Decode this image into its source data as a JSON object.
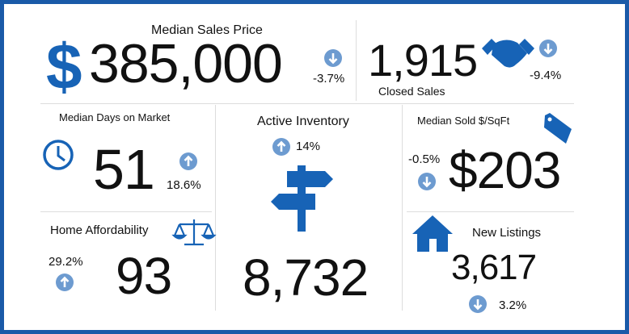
{
  "median_sales_price": {
    "label": "Median Sales Price",
    "symbol": "$",
    "value": "385,000",
    "change": "-3.7%"
  },
  "closed_sales": {
    "value": "1,915",
    "label": "Closed Sales",
    "change": "-9.4%"
  },
  "median_days_on_market": {
    "label": "Median Days on Market",
    "value": "51",
    "change": "18.6%"
  },
  "active_inventory": {
    "label": "Active Inventory",
    "change": "14%",
    "value": "8,732"
  },
  "median_sold_per_sqft": {
    "label": "Median Sold $/SqFt",
    "change": "-0.5%",
    "value": "$203"
  },
  "home_affordability": {
    "label": "Home Affordability",
    "change": "29.2%",
    "value": "93"
  },
  "new_listings": {
    "label": "New Listings",
    "value": "3,617",
    "change": "3.2%"
  }
}
